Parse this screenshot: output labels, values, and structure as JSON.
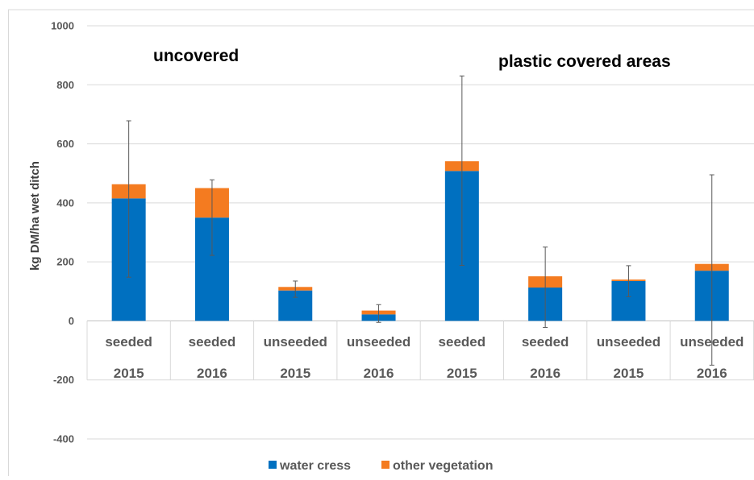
{
  "chart_data": {
    "type": "bar",
    "stacked": true,
    "title": "",
    "xlabel": "",
    "ylabel": "kg DM/ha wet ditch",
    "ylim": [
      -400,
      1000
    ],
    "yticks": [
      -400,
      -200,
      0,
      200,
      400,
      600,
      800,
      1000
    ],
    "grid": true,
    "legend_position": "bottom",
    "categories": [
      {
        "top": "seeded",
        "bottom": "2015"
      },
      {
        "top": "seeded",
        "bottom": "2016"
      },
      {
        "top": "unseeded",
        "bottom": "2015"
      },
      {
        "top": "unseeded",
        "bottom": "2016"
      },
      {
        "top": "seeded",
        "bottom": "2015"
      },
      {
        "top": "seeded",
        "bottom": "2016"
      },
      {
        "top": "unseeded",
        "bottom": "2015"
      },
      {
        "top": "unseeded",
        "bottom": "2016"
      }
    ],
    "series": [
      {
        "name": "water cress",
        "color": "#0070C0",
        "values": [
          415,
          350,
          103,
          22,
          508,
          113,
          135,
          170
        ]
      },
      {
        "name": "other vegetation",
        "color": "#F47B20",
        "values": [
          48,
          100,
          12,
          13,
          33,
          38,
          5,
          23
        ]
      }
    ],
    "error_bars": [
      {
        "low": 148,
        "high": 678
      },
      {
        "low": 222,
        "high": 478
      },
      {
        "low": 80,
        "high": 135
      },
      {
        "low": -5,
        "high": 55
      },
      {
        "low": 188,
        "high": 830
      },
      {
        "low": -22,
        "high": 250
      },
      {
        "low": 82,
        "high": 187
      },
      {
        "low": -150,
        "high": 495
      }
    ],
    "annotations": [
      {
        "text": "uncovered"
      },
      {
        "text": "plastic covered areas"
      }
    ]
  }
}
